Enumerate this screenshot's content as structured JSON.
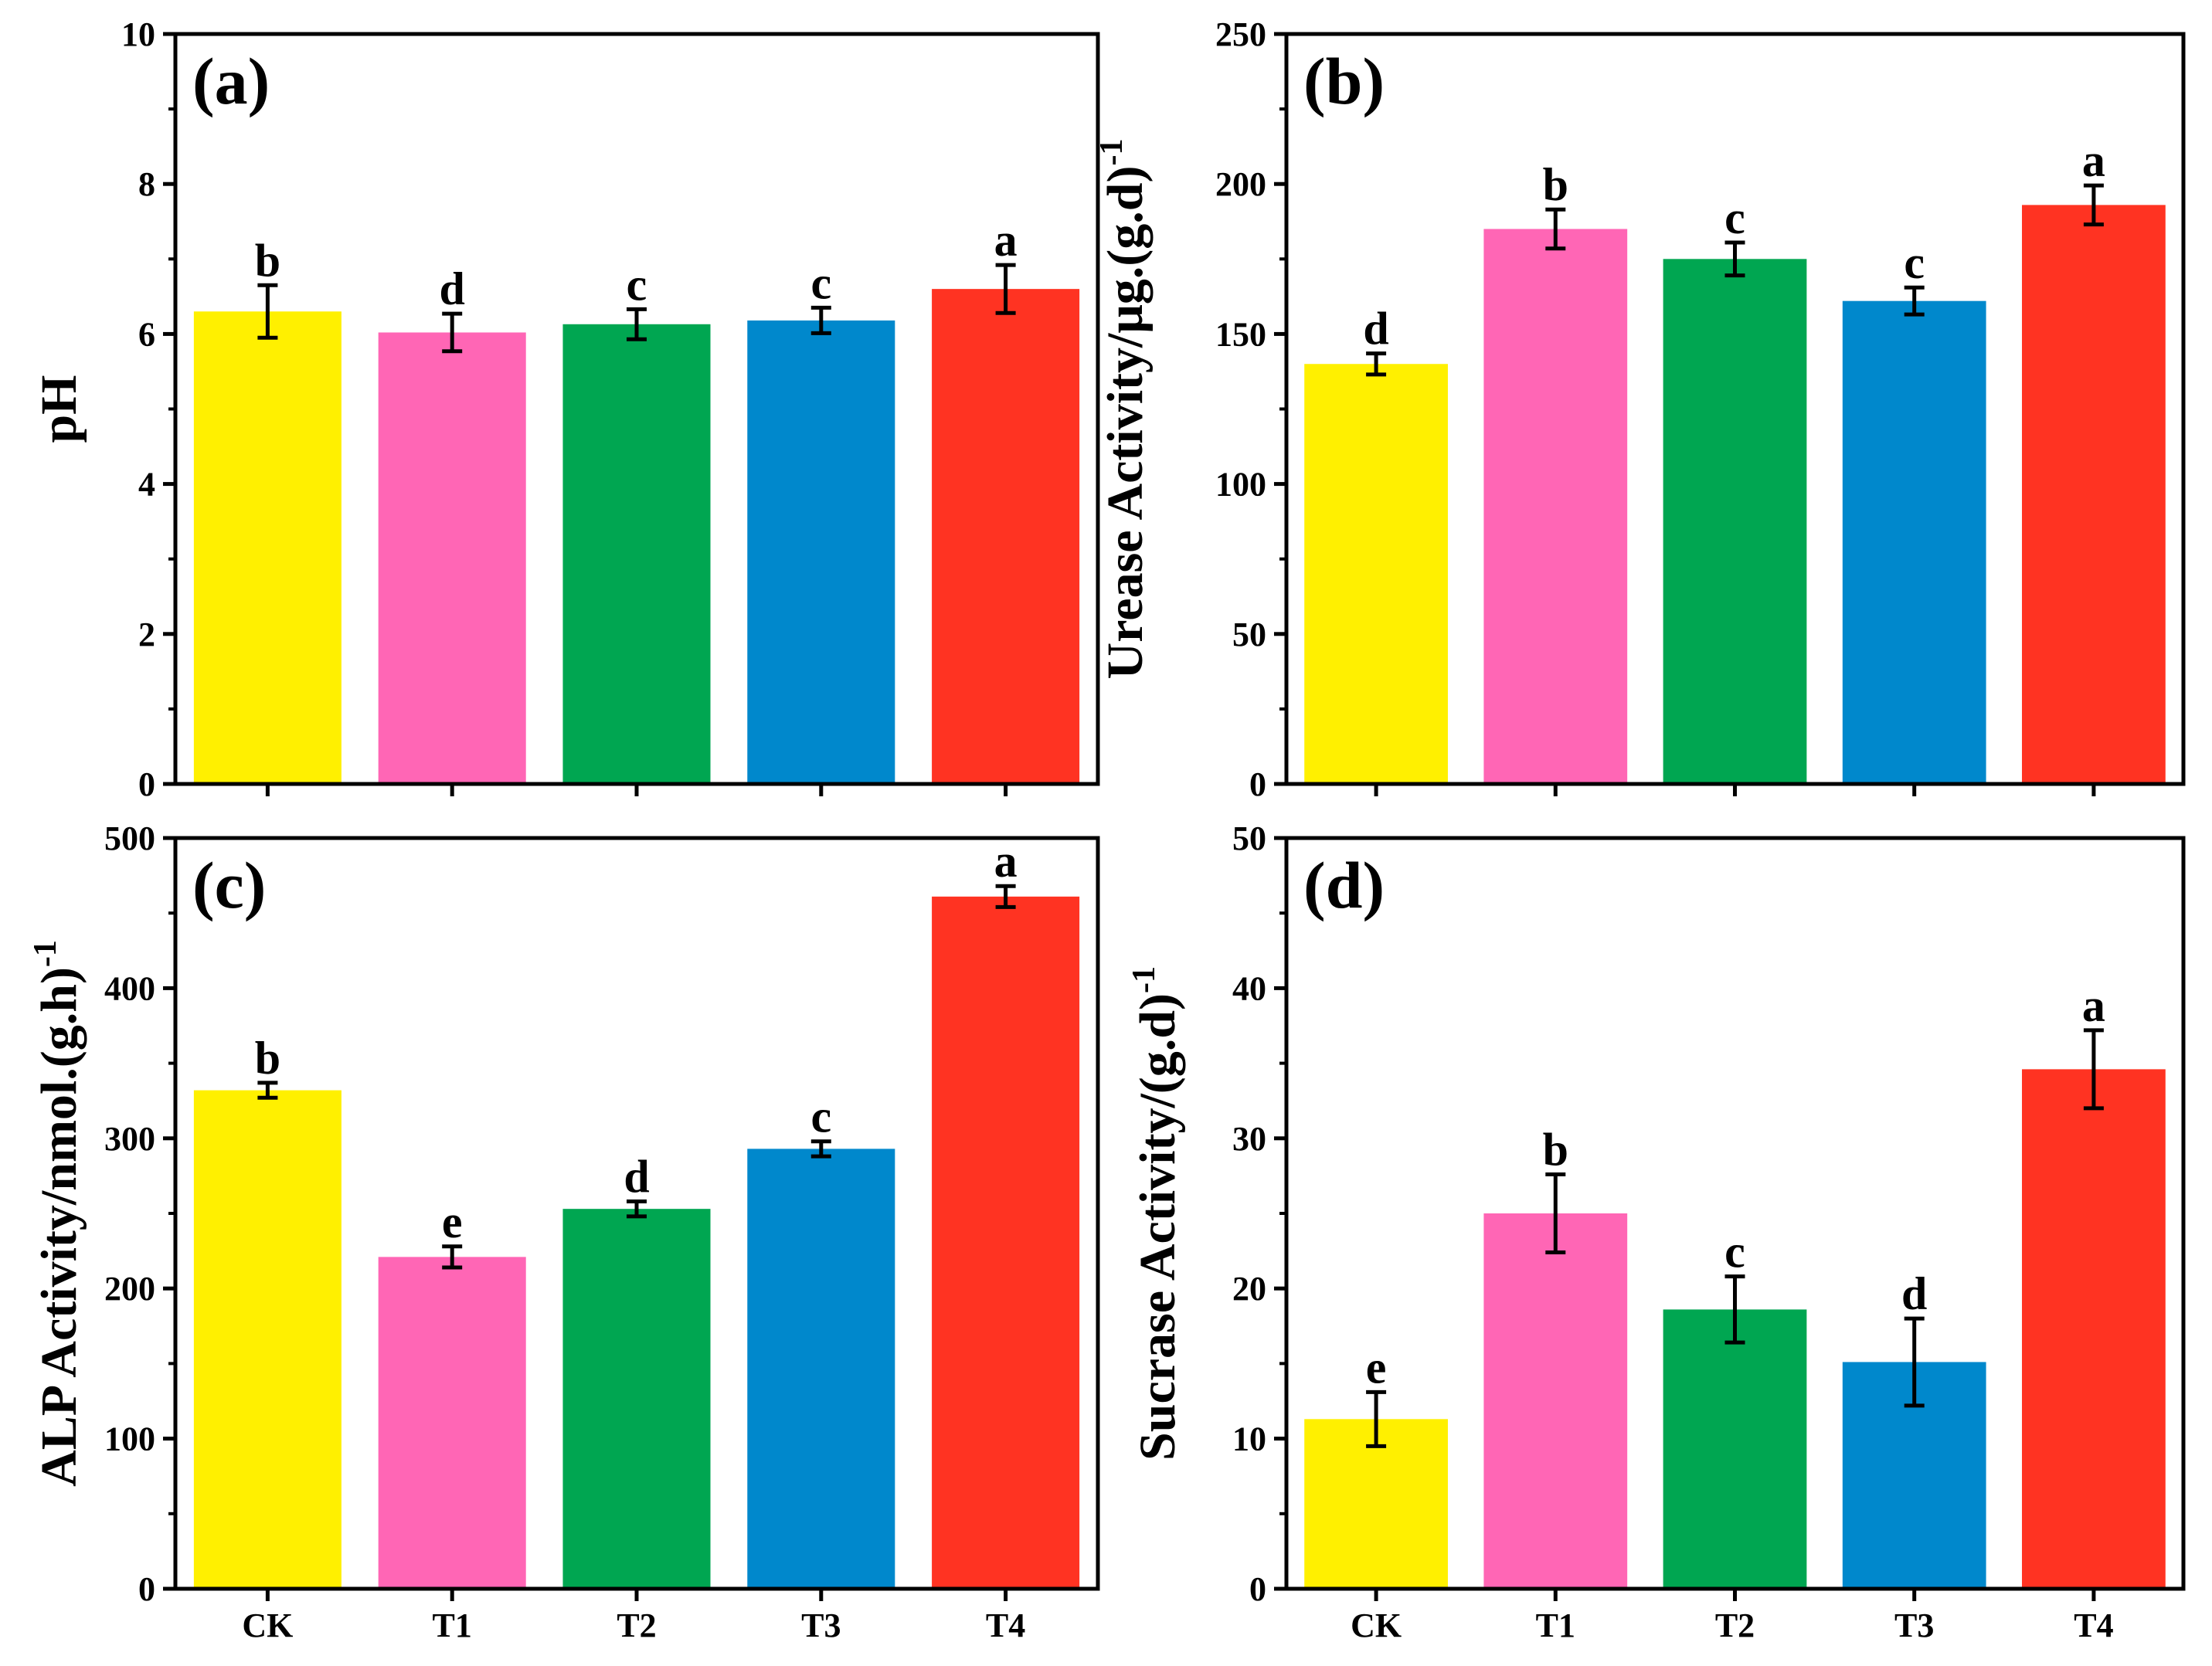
{
  "chart_data": [
    {
      "type": "bar",
      "panel_label": "(a)",
      "ylabel": "pH",
      "ylabel_sup": "",
      "ylim": [
        0,
        10
      ],
      "yticks": [
        0,
        2,
        4,
        6,
        8,
        10
      ],
      "categories": [
        "CK",
        "T1",
        "T2",
        "T3",
        "T4"
      ],
      "values": [
        6.3,
        6.02,
        6.13,
        6.18,
        6.6
      ],
      "errors": [
        0.35,
        0.25,
        0.2,
        0.17,
        0.32
      ],
      "letters": [
        "b",
        "d",
        "c",
        "c",
        "a"
      ],
      "colors": [
        "#fff000",
        "#ff66b5",
        "#00a651",
        "#0088cc",
        "#ff3322"
      ]
    },
    {
      "type": "bar",
      "panel_label": "(b)",
      "ylabel": "Urease Activity/μg.(g.d)",
      "ylabel_sup": "-1",
      "ylim": [
        0,
        250
      ],
      "yticks": [
        0,
        50,
        100,
        150,
        200,
        250
      ],
      "categories": [
        "CK",
        "T1",
        "T2",
        "T3",
        "T4"
      ],
      "values": [
        140,
        185,
        175,
        161,
        193
      ],
      "errors": [
        3.5,
        6.5,
        5.5,
        4.5,
        6.5
      ],
      "letters": [
        "d",
        "b",
        "c",
        "c",
        "a"
      ],
      "colors": [
        "#fff000",
        "#ff66b5",
        "#00a651",
        "#0088cc",
        "#ff3322"
      ]
    },
    {
      "type": "bar",
      "panel_label": "(c)",
      "ylabel": "ALP Activity/nmol.(g.h)",
      "ylabel_sup": "-1",
      "ylim": [
        0,
        500
      ],
      "yticks": [
        0,
        100,
        200,
        300,
        400,
        500
      ],
      "categories": [
        "CK",
        "T1",
        "T2",
        "T3",
        "T4"
      ],
      "values": [
        332,
        221,
        253,
        293,
        461
      ],
      "errors": [
        5,
        7,
        5,
        5,
        7
      ],
      "letters": [
        "b",
        "e",
        "d",
        "c",
        "a"
      ],
      "colors": [
        "#fff000",
        "#ff66b5",
        "#00a651",
        "#0088cc",
        "#ff3322"
      ]
    },
    {
      "type": "bar",
      "panel_label": "(d)",
      "ylabel": "Sucrase Activity/(g.d)",
      "ylabel_sup": "-1",
      "ylim": [
        0,
        50
      ],
      "yticks": [
        0,
        10,
        20,
        30,
        40,
        50
      ],
      "categories": [
        "CK",
        "T1",
        "T2",
        "T3",
        "T4"
      ],
      "values": [
        11.3,
        25,
        18.6,
        15.1,
        34.6
      ],
      "errors": [
        1.8,
        2.6,
        2.2,
        2.9,
        2.6
      ],
      "letters": [
        "e",
        "b",
        "c",
        "d",
        "a"
      ],
      "colors": [
        "#fff000",
        "#ff66b5",
        "#00a651",
        "#0088cc",
        "#ff3322"
      ]
    }
  ]
}
